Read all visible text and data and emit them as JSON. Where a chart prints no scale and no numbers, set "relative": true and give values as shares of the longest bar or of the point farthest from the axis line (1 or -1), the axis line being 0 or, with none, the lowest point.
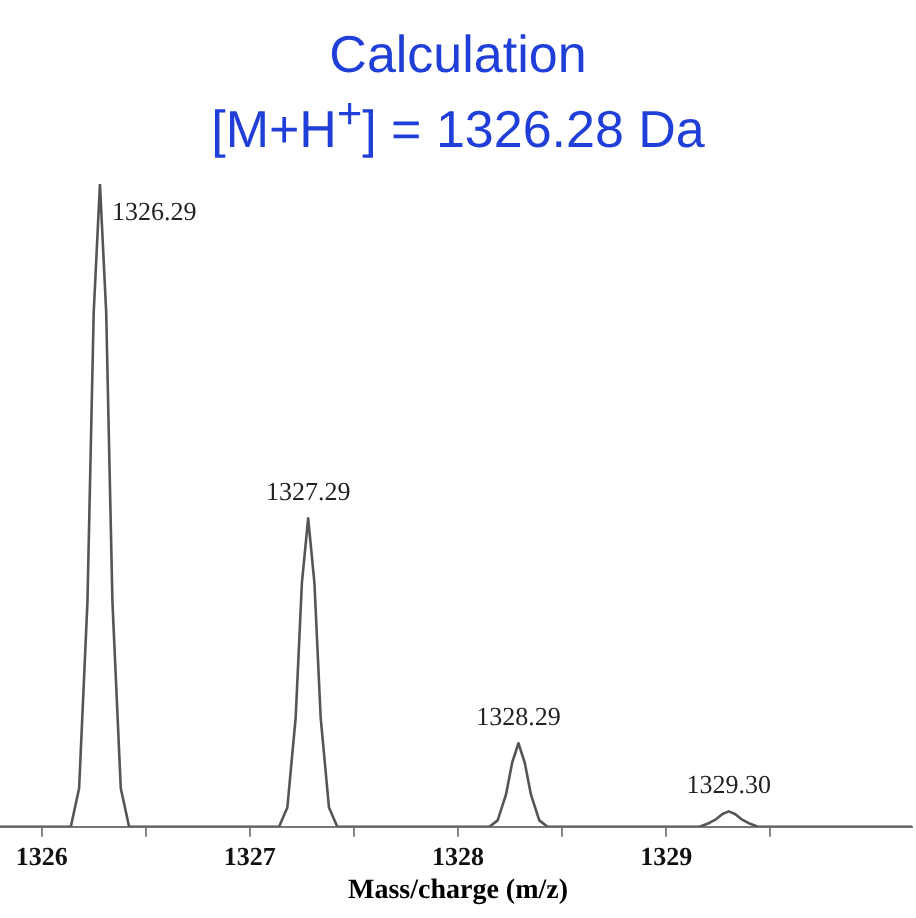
{
  "chart_data": {
    "type": "line",
    "title": "Calculation",
    "subtitle": "[M+H$^{+}$] = 1326.28 Da",
    "xlabel": "Mass/charge (m/z)",
    "relative": true,
    "xlim": [
      1325.8,
      1330.18
    ],
    "xticks": [
      1326,
      {
        "value": 1326.5,
        "label": null
      },
      1327,
      {
        "value": 1327.5,
        "label": null
      },
      1328,
      {
        "value": 1328.5,
        "label": null
      },
      1329,
      {
        "value": 1329.5,
        "label": null
      }
    ],
    "series": [
      {
        "color": "#555555",
        "x": [
          1325.8,
          1326.14,
          1326.18,
          1326.22,
          1326.25,
          1326.28,
          1326.31,
          1326.34,
          1326.38,
          1326.42,
          1327.14,
          1327.18,
          1327.22,
          1327.25,
          1327.28,
          1327.31,
          1327.34,
          1327.38,
          1327.42,
          1328.15,
          1328.19,
          1328.23,
          1328.26,
          1328.29,
          1328.32,
          1328.35,
          1328.39,
          1328.43,
          1329.16,
          1329.2,
          1329.24,
          1329.27,
          1329.3,
          1329.33,
          1329.36,
          1329.4,
          1329.44,
          1330.18
        ],
        "values": [
          0,
          0,
          0.06,
          0.35,
          0.8,
          1,
          0.8,
          0.35,
          0.06,
          0,
          0,
          0.03,
          0.17,
          0.38,
          0.48,
          0.38,
          0.17,
          0.03,
          0,
          0,
          0.01,
          0.05,
          0.1,
          0.13,
          0.1,
          0.05,
          0.01,
          0,
          0,
          0.005,
          0.012,
          0.02,
          0.024,
          0.02,
          0.012,
          0.005,
          0,
          0
        ]
      }
    ],
    "annotations": [
      {
        "text": "1326.29",
        "x": 1326.28,
        "y": 1
      },
      {
        "text": "1327.29",
        "x": 1327.28,
        "y": 0.48
      },
      {
        "text": "1328.29",
        "x": 1328.29,
        "y": 0.13
      },
      {
        "text": "1329.30",
        "x": 1329.3,
        "y": 0.024
      }
    ],
    "grid": false,
    "legend": false,
    "marker": "none",
    "line_style": "solid"
  }
}
